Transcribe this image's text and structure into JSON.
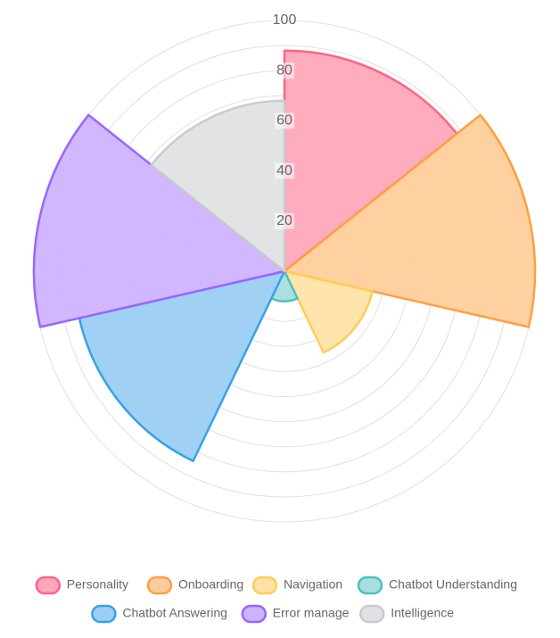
{
  "chart_data": {
    "type": "polarArea",
    "title": "",
    "categories": [
      "Personality",
      "Onboarding",
      "Navigation",
      "Chatbot Understanding",
      "Chatbot Answering",
      "Error manage",
      "Intelligence"
    ],
    "values": [
      88,
      100,
      36,
      12,
      84,
      100,
      68
    ],
    "rlim": [
      0,
      100
    ],
    "ticks": [
      "20",
      "40",
      "60",
      "80",
      "100"
    ],
    "grid": true,
    "legend_position": "bottom",
    "colors": [
      {
        "fill": "#ffa8bb",
        "stroke": "#ff6384"
      },
      {
        "fill": "#ffcd9b",
        "stroke": "#ff9f40"
      },
      {
        "fill": "#ffe3a6",
        "stroke": "#ffcd56"
      },
      {
        "fill": "#a8dede",
        "stroke": "#4bc0c0"
      },
      {
        "fill": "#9ccef4",
        "stroke": "#36a2eb"
      },
      {
        "fill": "#cdb3ff",
        "stroke": "#9966ff"
      },
      {
        "fill": "#e0e1e4",
        "stroke": "#c9cbcf"
      }
    ]
  }
}
